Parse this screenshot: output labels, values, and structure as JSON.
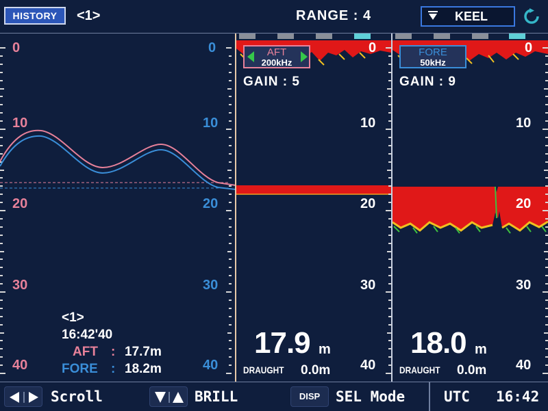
{
  "header": {
    "history_button": "HISTORY",
    "history_index": "<1>",
    "range_label": "RANGE : 4",
    "keel_button": "KEEL"
  },
  "history_panel": {
    "left_scale": [
      "0",
      "10",
      "20",
      "30",
      "40"
    ],
    "right_scale": [
      "0",
      "10",
      "20",
      "30",
      "40"
    ],
    "readout": {
      "index": "<1>",
      "time": "16:42'40",
      "aft_label": "AFT",
      "aft_value": "17.7m",
      "fore_label": "FORE",
      "fore_value": "18.2m"
    },
    "colors": {
      "aft": "#e7819a",
      "fore": "#3a8ed8"
    }
  },
  "aft_panel": {
    "name": "AFT",
    "frequency": "200kHz",
    "gain": "GAIN : 5",
    "scale": [
      "0",
      "10",
      "20",
      "30",
      "40"
    ],
    "depth_value": "17.9",
    "depth_unit": "m",
    "draught_label": "DRAUGHT",
    "draught_value": "0.0m",
    "accent": "#e7819a"
  },
  "fore_panel": {
    "name": "FORE",
    "frequency": "50kHz",
    "gain": "GAIN : 9",
    "scale": [
      "0",
      "10",
      "20",
      "30",
      "40"
    ],
    "depth_value": "18.0",
    "depth_unit": "m",
    "draught_label": "DRAUGHT",
    "draught_value": "0.0m",
    "accent": "#3a8ed8"
  },
  "footer": {
    "scroll_label": "Scroll",
    "brill_label": "BRILL",
    "disp_key": "DISP",
    "sel_mode_label": "SEL Mode",
    "utc_label": "UTC",
    "time": "16:42"
  }
}
